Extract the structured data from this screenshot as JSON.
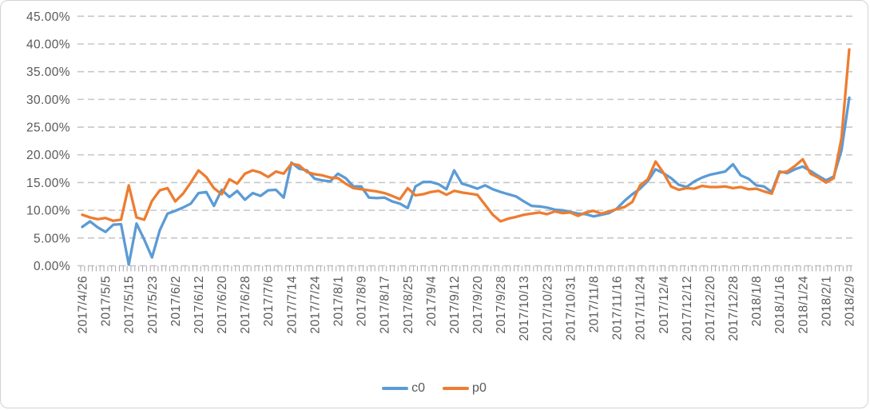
{
  "chart_data": {
    "type": "line",
    "title": "",
    "xlabel": "",
    "ylabel": "",
    "grid": "horizontal-dashed",
    "legend_position": "bottom-center",
    "colors": {
      "gridline": "#c7c7c7",
      "tick": "#a6a6a6",
      "axis_text": "#595959",
      "background": "#ffffff"
    },
    "y_axis": {
      "min": 0,
      "max": 45,
      "step": 5,
      "unit": "percent",
      "labels": [
        "0.00%",
        "5.00%",
        "10.00%",
        "15.00%",
        "20.00%",
        "25.00%",
        "30.00%",
        "35.00%",
        "40.00%",
        "45.00%"
      ]
    },
    "x_axis": {
      "tick_labels": [
        "2017/4/26",
        "2017/5/5",
        "2017/5/15",
        "2017/5/23",
        "2017/6/2",
        "2017/6/12",
        "2017/6/20",
        "2017/6/28",
        "2017/7/6",
        "2017/7/14",
        "2017/7/24",
        "2017/8/1",
        "2017/8/9",
        "2017/8/17",
        "2017/8/25",
        "2017/9/4",
        "2017/9/12",
        "2017/9/20",
        "2017/9/28",
        "2017/10/13",
        "2017/10/23",
        "2017/10/31",
        "2017/11/8",
        "2017/11/16",
        "2017/11/24",
        "2017/12/4",
        "2017/12/12",
        "2017/12/20",
        "2017/12/28",
        "2018/1/8",
        "2018/1/16",
        "2018/1/24",
        "2018/2/1",
        "2018/2/9"
      ]
    },
    "series": [
      {
        "name": "c0",
        "color": "#5B9BD5",
        "values_unit": "percent",
        "values": [
          7.0,
          8.0,
          6.9,
          6.1,
          7.4,
          7.5,
          0.2,
          7.6,
          4.7,
          1.5,
          6.4,
          9.4,
          9.9,
          10.5,
          11.2,
          13.1,
          13.3,
          10.8,
          13.7,
          12.4,
          13.5,
          11.9,
          13.1,
          12.6,
          13.6,
          13.7,
          12.3,
          18.6,
          17.5,
          17.2,
          15.7,
          15.4,
          15.2,
          16.6,
          15.8,
          14.3,
          14.3,
          12.3,
          12.2,
          12.3,
          11.6,
          11.2,
          10.4,
          14.3,
          15.1,
          15.1,
          14.7,
          13.8,
          17.2,
          14.8,
          14.4,
          13.9,
          14.5,
          13.8,
          13.3,
          12.9,
          12.5,
          11.6,
          10.8,
          10.7,
          10.5,
          10.1,
          10.0,
          9.7,
          9.4,
          9.3,
          8.9,
          9.2,
          9.5,
          10.3,
          11.7,
          12.9,
          13.9,
          15.3,
          17.4,
          16.7,
          15.8,
          14.6,
          14.2,
          15.2,
          15.9,
          16.4,
          16.7,
          17.0,
          18.3,
          16.3,
          15.7,
          14.5,
          14.3,
          13.3,
          17.0,
          16.7,
          17.4,
          17.9,
          17.1,
          16.2,
          15.4,
          16.1,
          20.8,
          30.3
        ]
      },
      {
        "name": "p0",
        "color": "#ED7D31",
        "values_unit": "percent",
        "values": [
          9.2,
          8.7,
          8.4,
          8.6,
          8.1,
          8.3,
          14.5,
          8.7,
          8.3,
          11.7,
          13.6,
          14.0,
          11.6,
          13.0,
          15.0,
          17.2,
          16.0,
          14.0,
          12.9,
          15.6,
          14.8,
          16.6,
          17.2,
          16.8,
          16.0,
          17.0,
          16.6,
          18.4,
          18.1,
          16.9,
          16.5,
          16.3,
          15.9,
          15.8,
          14.8,
          14.0,
          13.8,
          13.6,
          13.4,
          13.1,
          12.6,
          12.0,
          14.0,
          12.7,
          12.9,
          13.3,
          13.5,
          12.8,
          13.5,
          13.2,
          13.0,
          12.8,
          11.0,
          9.2,
          8.0,
          8.5,
          8.8,
          9.2,
          9.4,
          9.6,
          9.3,
          9.8,
          9.5,
          9.6,
          9.0,
          9.6,
          9.9,
          9.4,
          9.8,
          10.2,
          10.6,
          11.5,
          14.5,
          15.6,
          18.8,
          16.8,
          14.3,
          13.7,
          14.0,
          13.9,
          14.4,
          14.2,
          14.2,
          14.3,
          14.0,
          14.2,
          13.8,
          13.9,
          13.4,
          13.0,
          16.8,
          17.0,
          18.0,
          19.2,
          16.6,
          15.9,
          15.0,
          15.8,
          23.0,
          39.0
        ]
      }
    ]
  }
}
